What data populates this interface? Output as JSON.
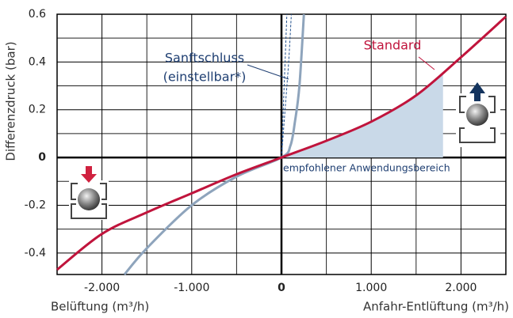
{
  "chart_data": {
    "type": "line",
    "ylabel": "Differenzdruck (bar)",
    "xlabel_left": "Belüftung (m³/h)",
    "xlabel_right": "Anfahr-Entlüftung (m³/h)",
    "xlim": [
      -2500,
      2500
    ],
    "ylim": [
      -0.49,
      0.6
    ],
    "xticks": [
      {
        "value": -2000,
        "label": "-2.000"
      },
      {
        "value": -1000,
        "label": "-1.000"
      },
      0,
      {
        "value": 1000,
        "label": "1.000"
      },
      {
        "value": 2000,
        "label": "2.000"
      }
    ],
    "yticks": [
      -0.4,
      -0.2,
      0,
      0.2,
      0.4,
      0.6
    ],
    "x_minor_grid": [
      -1500,
      -500,
      500,
      1500
    ],
    "y_minor_grid": [
      -0.3,
      -0.1,
      0.1,
      0.3,
      0.5
    ],
    "grid": true,
    "series": [
      {
        "name": "Standard",
        "color": "#c0143c",
        "x": [
          -2500,
          -2000,
          -1500,
          -1000,
          -500,
          0,
          500,
          1000,
          1500,
          2000,
          2500
        ],
        "values": [
          -0.47,
          -0.32,
          -0.23,
          -0.15,
          -0.07,
          0,
          0.07,
          0.15,
          0.26,
          0.42,
          0.59
        ]
      },
      {
        "name": "Sanftschluss",
        "color": "#8ea4bc",
        "label_color": "#1f3f72",
        "x": [
          -1750,
          -1500,
          -1000,
          -500,
          0,
          100,
          150,
          200,
          250
        ],
        "values": [
          -0.49,
          -0.38,
          -0.2,
          -0.08,
          0,
          0.05,
          0.15,
          0.3,
          0.6
        ]
      },
      {
        "color": "#1f4e8c",
        "dashed": true,
        "x": [
          0,
          20,
          40,
          60
        ],
        "values": [
          0,
          0.2,
          0.4,
          0.6
        ]
      },
      {
        "color": "#1f4e8c",
        "dashed": true,
        "x": [
          0,
          40,
          80,
          110
        ],
        "values": [
          0,
          0.2,
          0.4,
          0.6
        ]
      }
    ],
    "sanft_note": "(einstellbar*)",
    "shaded_range": [
      0,
      1800
    ],
    "shaded_color": "#c9d9e8",
    "shaded_label": "empfohlener Anwendungsbereich"
  }
}
